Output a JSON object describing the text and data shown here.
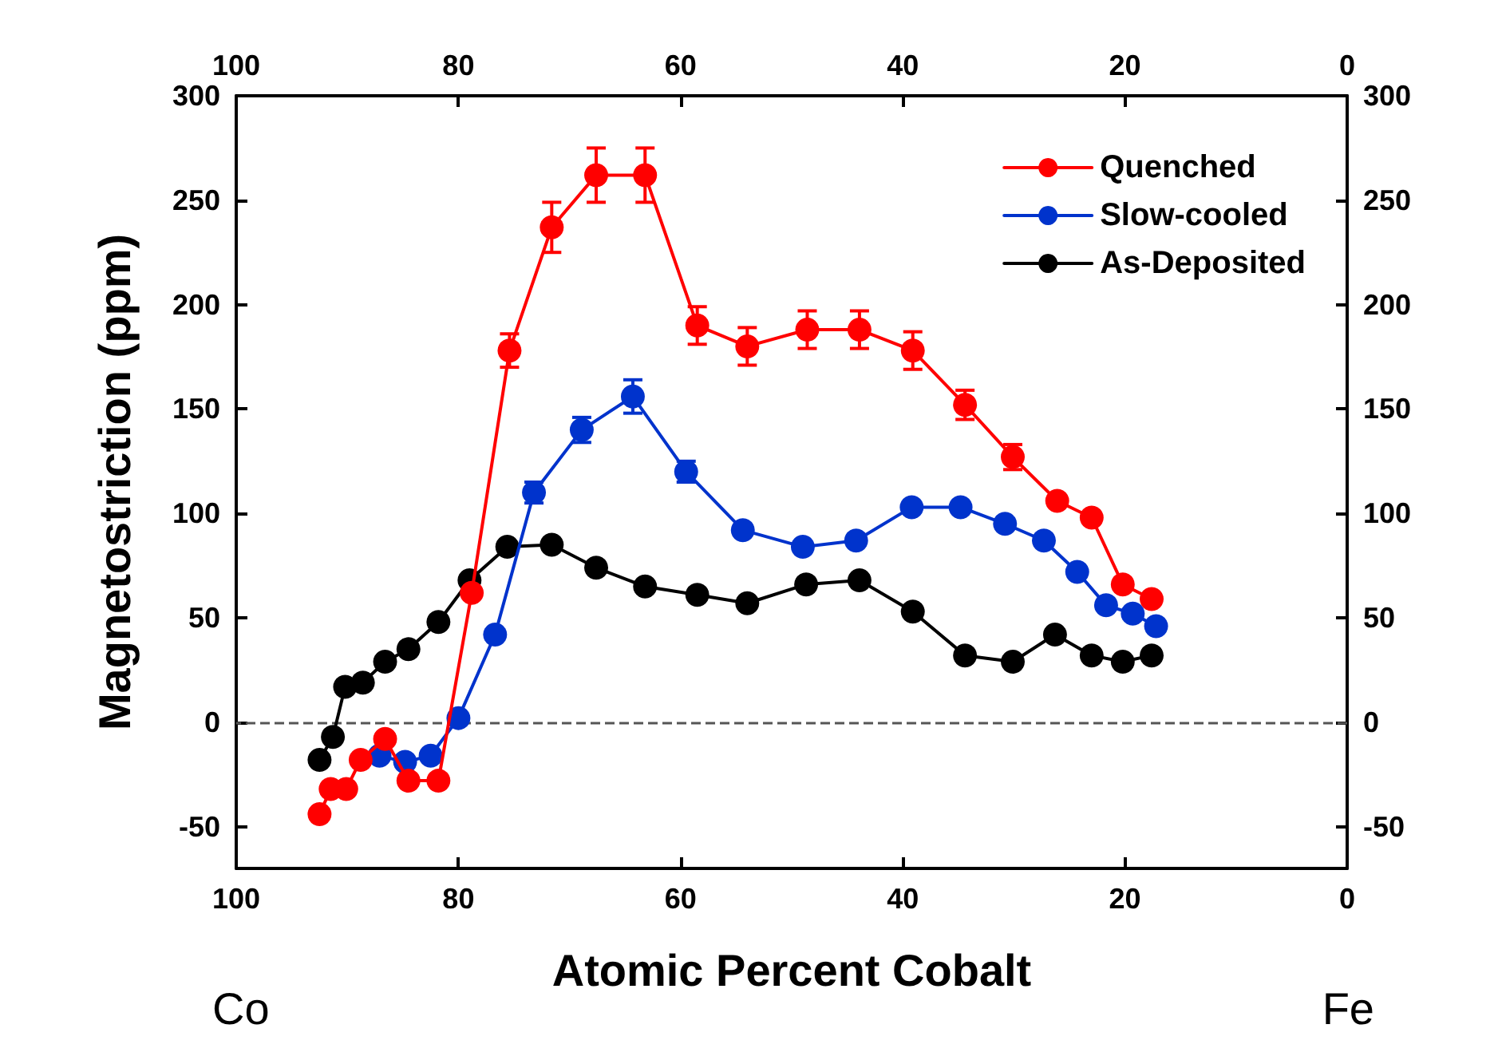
{
  "chart_data": {
    "type": "line",
    "xlabel": "Atomic Percent Cobalt",
    "ylabel": "Magnetostriction (ppm)",
    "xlim": [
      100,
      0
    ],
    "xticks": [
      100,
      80,
      60,
      40,
      20,
      0
    ],
    "x2lim": [
      100,
      0
    ],
    "x2ticks": [
      100,
      80,
      60,
      40,
      20,
      0
    ],
    "ylim": [
      -70,
      300
    ],
    "yticks": [
      -50,
      0,
      50,
      100,
      150,
      200,
      250,
      300
    ],
    "y2lim": [
      -70,
      300
    ],
    "y2ticks": [
      -50,
      0,
      50,
      100,
      150,
      200,
      250,
      300
    ],
    "annotations": [
      "Co",
      "Fe"
    ],
    "ref_lines": [
      {
        "axis": "y",
        "value": 0,
        "color": "#555555",
        "line_style": "dashed"
      }
    ],
    "legend": "top right",
    "marker": "circle",
    "line_style": "solid",
    "grid": false,
    "series": [
      {
        "name": "Quenched",
        "color": "#ff0000",
        "x": [
          92.5,
          91.5,
          90.1,
          88.8,
          86.6,
          84.5,
          81.8,
          78.8,
          75.4,
          71.6,
          67.6,
          63.2,
          58.5,
          54,
          48.6,
          43.9,
          39.1,
          34.4,
          30.1,
          26.1,
          23,
          20.2,
          17.6
        ],
        "values": [
          -44,
          -32,
          -32,
          -18,
          -8,
          -28,
          -28,
          62,
          178,
          237,
          262,
          262,
          190,
          180,
          188,
          188,
          178,
          152,
          127,
          106,
          98,
          66,
          59
        ],
        "errors": [
          null,
          null,
          null,
          null,
          null,
          null,
          null,
          null,
          8,
          12,
          13,
          13,
          9,
          9,
          9,
          9,
          9,
          7,
          6,
          null,
          null,
          null,
          null
        ]
      },
      {
        "name": "Slow-cooled",
        "color": "#0033cc",
        "x": [
          87.1,
          84.8,
          82.5,
          80,
          76.7,
          73.2,
          68.9,
          64.3,
          59.5,
          54.4,
          49,
          44.2,
          39.2,
          34.8,
          30.8,
          27.3,
          24.3,
          21.7,
          19.3,
          17.2
        ],
        "values": [
          -16,
          -19,
          -16,
          2,
          42,
          110,
          140,
          156,
          120,
          92,
          84,
          87,
          103,
          103,
          95,
          87,
          72,
          56,
          52,
          46
        ],
        "errors": [
          null,
          null,
          null,
          null,
          null,
          5,
          6,
          8,
          5,
          null,
          null,
          null,
          null,
          null,
          null,
          null,
          null,
          null,
          null,
          null
        ]
      },
      {
        "name": "As-Deposited",
        "color": "#000000",
        "x": [
          92.5,
          91.3,
          90.2,
          88.6,
          86.6,
          84.5,
          81.8,
          79,
          75.6,
          71.6,
          67.6,
          63.2,
          58.5,
          54,
          48.7,
          43.9,
          39.1,
          34.4,
          30.1,
          26.3,
          23,
          20.2,
          17.6
        ],
        "values": [
          -18,
          -7,
          17,
          19,
          29,
          35,
          48,
          68,
          84,
          85,
          74,
          65,
          61,
          57,
          66,
          68,
          53,
          32,
          29,
          42,
          32,
          29,
          32
        ]
      }
    ]
  }
}
